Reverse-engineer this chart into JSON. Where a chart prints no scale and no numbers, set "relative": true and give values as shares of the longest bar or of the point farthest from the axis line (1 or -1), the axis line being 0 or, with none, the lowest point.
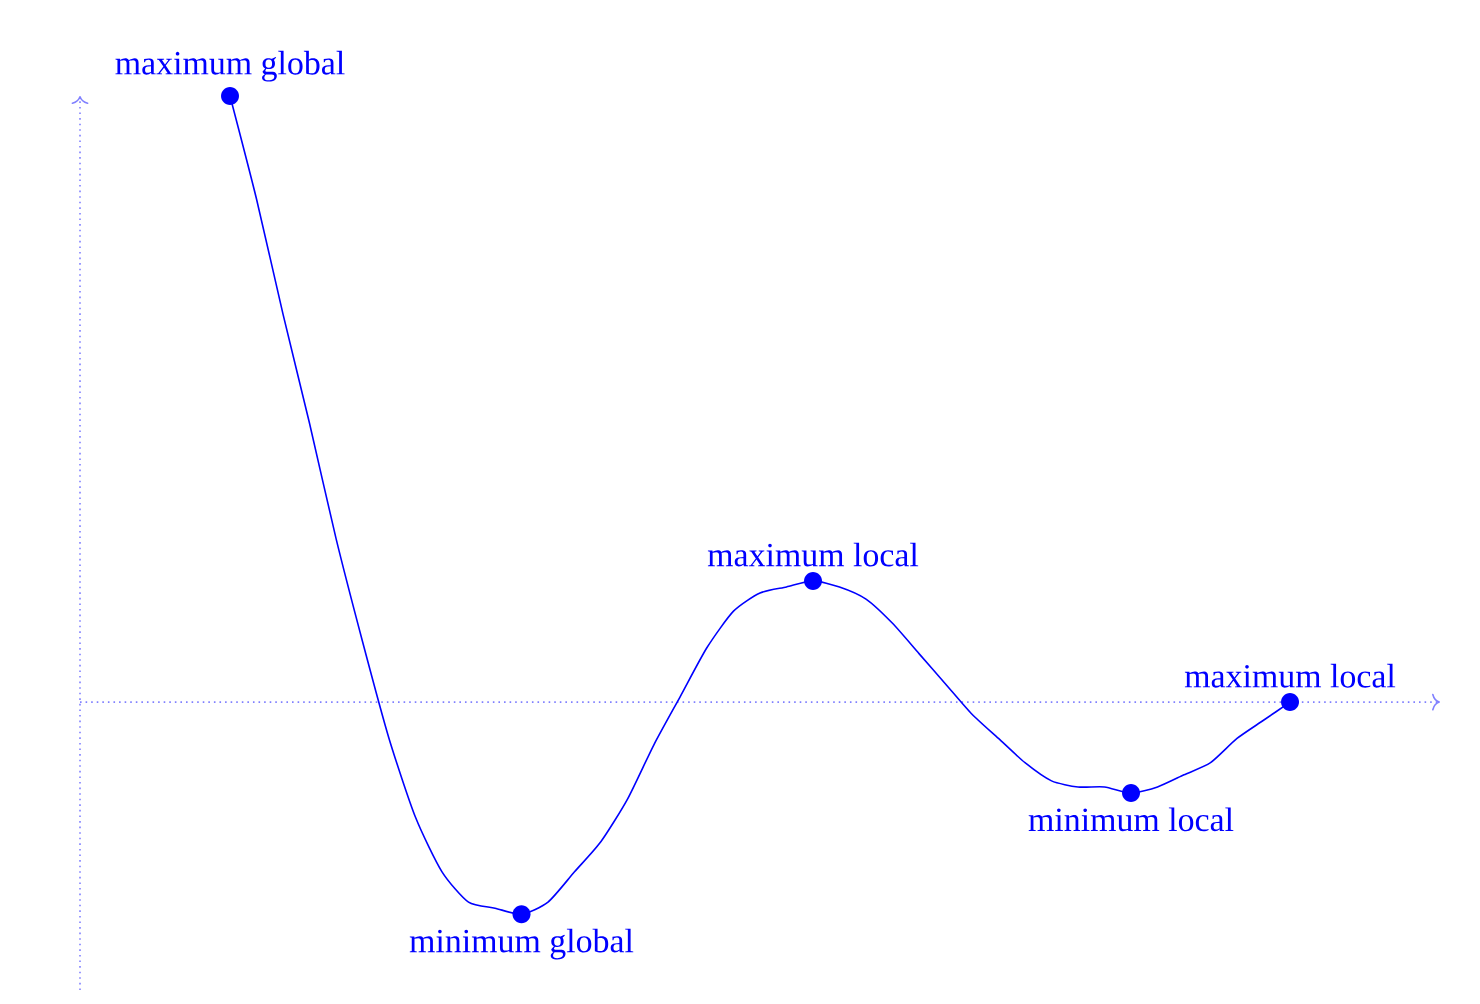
{
  "chart_data": {
    "type": "line",
    "relative": true,
    "ref_lines": [
      {
        "axis": "y",
        "value": 0,
        "color": "#8080ff",
        "line_style": "dotted"
      }
    ],
    "categories": [
      null,
      null,
      null,
      null,
      null,
      null,
      null,
      null,
      null,
      null,
      null,
      null,
      null,
      null,
      null,
      null,
      null,
      null,
      null,
      null,
      null,
      null,
      null,
      null,
      null,
      null,
      null,
      null,
      null,
      null,
      null,
      null,
      null,
      null,
      null,
      null,
      null,
      null,
      null,
      null,
      null
    ],
    "series": [
      {
        "color": "#0000ff",
        "values": [
          1,
          0.83,
          0.64,
          0.46,
          0.27,
          0.1,
          -0.06,
          -0.19,
          -0.28,
          -0.33,
          -0.34,
          -0.35,
          -0.33,
          -0.28,
          -0.23,
          -0.16,
          -0.07,
          0.01,
          0.09,
          0.15,
          0.18,
          0.19,
          0.2,
          0.19,
          0.17,
          0.13,
          0.08,
          0.03,
          -0.02,
          -0.06,
          -0.1,
          -0.13,
          -0.14,
          -0.14,
          -0.15,
          -0.14,
          -0.12,
          -0.1,
          -0.06,
          -0.03,
          0
        ]
      }
    ],
    "annotations": [
      {
        "text": "maximum global",
        "y": 1
      },
      {
        "text": "minimum global",
        "y": -0.35
      },
      {
        "text": "maximum local",
        "y": 0.2
      },
      {
        "text": "minimum local",
        "y": -0.15
      },
      {
        "text": "maximum local",
        "y": 0
      }
    ]
  }
}
